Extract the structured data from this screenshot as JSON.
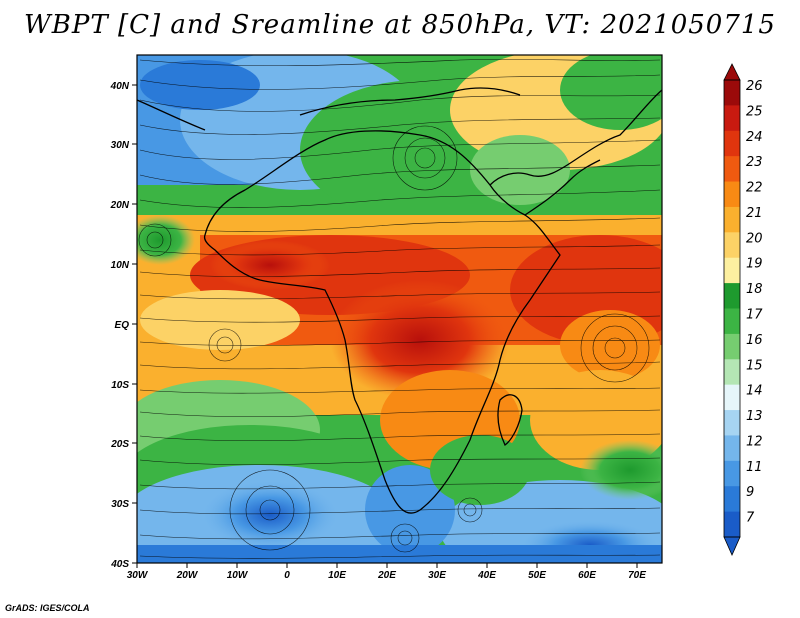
{
  "title": "WBPT [C] and Sreamline at 850hPa, VT: 2021050715",
  "credit": "GrADS: IGES/COLA",
  "map": {
    "lon_range": [
      -30,
      75
    ],
    "lat_range": [
      -40,
      45
    ],
    "lat_ticks": [
      "40N",
      "30N",
      "20N",
      "10N",
      "EQ",
      "10S",
      "20S",
      "30S",
      "40S"
    ],
    "lon_ticks": [
      "30W",
      "20W",
      "10W",
      "0",
      "10E",
      "20E",
      "30E",
      "40E",
      "50E",
      "60E",
      "70E"
    ]
  },
  "colorbar": {
    "labels": [
      "26",
      "25",
      "24",
      "23",
      "22",
      "21",
      "20",
      "19",
      "18",
      "17",
      "16",
      "15",
      "14",
      "13",
      "12",
      "11",
      "9",
      "7"
    ],
    "colors": [
      "#9b0a0a",
      "#c81a10",
      "#e0350e",
      "#f05a10",
      "#f88a14",
      "#fab02e",
      "#fcd266",
      "#fdf0a0",
      "#1e9a2e",
      "#3cb444",
      "#76cd70",
      "#b4e6b4",
      "#e6f6fa",
      "#a6d4f2",
      "#74b6ec",
      "#4898e4",
      "#2a7ad8",
      "#1a5cc8"
    ]
  }
}
